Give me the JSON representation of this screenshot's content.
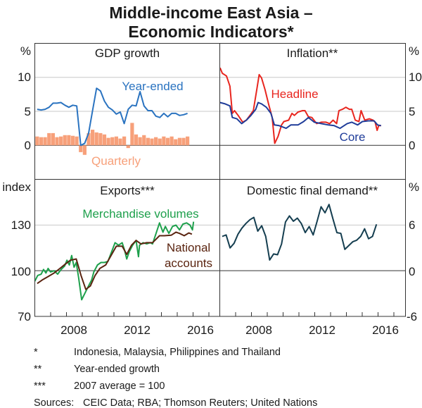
{
  "title_line1": "Middle-income East Asia –",
  "title_line2": "Economic Indicators*",
  "footnotes": [
    {
      "mark": "*",
      "text": "Indonesia, Malaysia, Philippines and Thailand"
    },
    {
      "mark": "**",
      "text": "Year-ended growth"
    },
    {
      "mark": "***",
      "text": "2007 average = 100"
    },
    {
      "mark": "Sources:",
      "text": "CEIC Data; RBA; Thomson Reuters; United Nations"
    }
  ],
  "colors": {
    "year_ended": "#2a73c0",
    "quarterly": "#f7a07a",
    "headline": "#e8261f",
    "core": "#1f3c99",
    "merch": "#1ea04c",
    "national": "#5a2410",
    "dfd": "#153e50",
    "grid": "#c8c8c8"
  },
  "chart_data": [
    {
      "type": "bar+line",
      "title": "GDP growth",
      "ylabel": "%",
      "ylim": [
        -5,
        15
      ],
      "yticks": [
        "10",
        "5",
        "0"
      ],
      "xlim": [
        2006,
        2017.67
      ],
      "xticks": [
        "2008",
        "2012",
        "2016"
      ],
      "x_start_year": 2006.15,
      "x_step_years": 0.25,
      "series": [
        {
          "name": "Year-ended",
          "type": "line",
          "values": [
            5.3,
            5.2,
            5.3,
            5.6,
            6.2,
            6.2,
            6.3,
            5.9,
            5.6,
            5.9,
            5.8,
            0.0,
            0.3,
            1.8,
            5.1,
            8.4,
            8.0,
            6.5,
            5.6,
            5.2,
            4.6,
            4.9,
            3.2,
            5.3,
            5.9,
            5.8,
            7.9,
            5.8,
            5.1,
            5.1,
            4.3,
            4.1,
            4.7,
            4.2,
            4.7,
            4.7,
            4.4,
            4.5,
            4.7
          ]
        },
        {
          "name": "Quarterly",
          "type": "bar",
          "values": [
            1.3,
            1.2,
            1.2,
            1.8,
            1.8,
            1.2,
            1.3,
            1.5,
            1.5,
            1.4,
            1.3,
            -1.0,
            -1.4,
            1.8,
            2.3,
            1.9,
            1.8,
            1.6,
            1.1,
            1.2,
            1.3,
            1.0,
            1.3,
            -0.4,
            3.3,
            1.6,
            1.2,
            1.5,
            1.1,
            1.0,
            1.2,
            1.0,
            1.3,
            1.1,
            1.3,
            0.9,
            1.1,
            1.1,
            1.3
          ]
        }
      ]
    },
    {
      "type": "line",
      "title": "Inflation**",
      "ylabel": "%",
      "ylim": [
        -5,
        15
      ],
      "yticks": [
        "10",
        "5",
        "0"
      ],
      "xlim": [
        2006,
        2017.67
      ],
      "xticks": [
        "2008",
        "2012",
        "2016"
      ],
      "series": [
        {
          "name": "Headline",
          "x": [
            2006.02,
            2006.16,
            2006.42,
            2006.64,
            2006.79,
            2006.93,
            2007.16,
            2007.45,
            2007.68,
            2007.9,
            2008.12,
            2008.34,
            2008.49,
            2008.64,
            2008.86,
            2009.08,
            2009.31,
            2009.47,
            2009.68,
            2009.9,
            2010.05,
            2010.35,
            2010.56,
            2010.71,
            2010.94,
            2011.23,
            2011.38,
            2011.6,
            2011.82,
            2012.12,
            2012.41,
            2012.71,
            2012.94,
            2013.16,
            2013.38,
            2013.53,
            2013.75,
            2013.97,
            2014.19,
            2014.34,
            2014.56,
            2014.79,
            2014.93,
            2015.16,
            2015.45,
            2015.68,
            2015.82,
            2015.94,
            2016.04,
            2016.19
          ],
          "values": [
            11.4,
            10.6,
            10.2,
            8.7,
            4.7,
            5.1,
            4.4,
            3.4,
            3.7,
            4.4,
            5.1,
            8.2,
            10.4,
            9.9,
            8.2,
            6.1,
            4.1,
            0.3,
            1.3,
            3.0,
            3.5,
            3.7,
            4.7,
            4.4,
            4.9,
            5.1,
            5.1,
            4.2,
            4.1,
            3.2,
            3.4,
            3.4,
            3.2,
            3.7,
            3.2,
            5.1,
            5.3,
            5.6,
            5.3,
            5.3,
            3.7,
            3.5,
            5.1,
            3.7,
            3.9,
            3.7,
            3.4,
            2.2,
            2.9,
            2.9
          ]
        },
        {
          "name": "Core",
          "x": [
            2006.02,
            2006.34,
            2006.64,
            2006.79,
            2007.08,
            2007.38,
            2007.68,
            2007.97,
            2008.27,
            2008.42,
            2008.64,
            2008.94,
            2009.23,
            2009.45,
            2009.75,
            2010.19,
            2010.49,
            2010.94,
            2011.3,
            2011.6,
            2011.97,
            2012.41,
            2012.86,
            2013.23,
            2013.6,
            2014.05,
            2014.34,
            2014.71,
            2015.01,
            2015.38,
            2015.75,
            2015.97,
            2016.19
          ],
          "values": [
            6.3,
            6.1,
            5.8,
            4.1,
            3.9,
            3.2,
            3.7,
            4.4,
            5.3,
            6.3,
            6.1,
            5.6,
            4.7,
            3.0,
            2.9,
            2.5,
            3.0,
            3.0,
            3.5,
            4.1,
            3.4,
            3.2,
            3.0,
            2.9,
            2.5,
            3.2,
            3.4,
            3.0,
            3.5,
            3.6,
            3.6,
            3.0,
            2.9
          ]
        }
      ]
    },
    {
      "type": "line",
      "title": "Exports***",
      "ylabel": "index",
      "ylim": [
        70,
        160
      ],
      "yticks": [
        "130",
        "100",
        "70"
      ],
      "xlim": [
        2006,
        2017.67
      ],
      "xticks": [
        "2008",
        "2012",
        "2016"
      ],
      "series": [
        {
          "name": "Merchandise volumes",
          "x": [
            2006.0,
            2006.18,
            2006.4,
            2006.55,
            2006.7,
            2006.84,
            2006.99,
            2007.22,
            2007.44,
            2007.66,
            2007.88,
            2008.03,
            2008.18,
            2008.33,
            2008.48,
            2008.62,
            2008.77,
            2008.96,
            2009.14,
            2009.36,
            2009.59,
            2009.73,
            2009.96,
            2010.18,
            2010.4,
            2010.62,
            2010.85,
            2011.07,
            2011.29,
            2011.52,
            2011.66,
            2011.81,
            2011.96,
            2012.18,
            2012.4,
            2012.55,
            2012.62,
            2012.84,
            2013.07,
            2013.29,
            2013.44,
            2013.66,
            2013.88,
            2014.1,
            2014.25,
            2014.47,
            2014.7,
            2014.92,
            2015.14,
            2015.36,
            2015.59,
            2015.81,
            2015.96,
            2016.03
          ],
          "values": [
            93.1,
            96.9,
            97.7,
            100.8,
            98.5,
            101.5,
            99.2,
            100,
            97.7,
            100.8,
            103,
            106.9,
            103.8,
            110,
            102.3,
            105.4,
            95.4,
            80.9,
            84.7,
            89.3,
            93.9,
            99.2,
            103.8,
            105.4,
            105.4,
            106.1,
            112.3,
            118.4,
            116.8,
            118.4,
            113.8,
            107.7,
            112.3,
            116.8,
            119.9,
            109.2,
            116.8,
            118.4,
            117.6,
            118.4,
            117.6,
            124.5,
            131.4,
            125.3,
            129.1,
            124.5,
            129.1,
            129.9,
            126.8,
            130.6,
            131.4,
            129.9,
            126.8,
            132.2
          ]
        },
        {
          "name": "National accounts",
          "x": [
            2006.15,
            2006.47,
            2006.85,
            2007.22,
            2007.59,
            2007.96,
            2008.25,
            2008.62,
            2008.92,
            2009.22,
            2009.51,
            2009.81,
            2010.11,
            2010.48,
            2010.78,
            2011.15,
            2011.52,
            2011.81,
            2012.11,
            2012.4,
            2012.7,
            2013.07,
            2013.44,
            2013.66,
            2013.88,
            2014.18,
            2014.62,
            2014.92,
            2015.14,
            2015.44,
            2015.73,
            2015.93
          ],
          "values": [
            91.6,
            93.9,
            96.2,
            98.5,
            101.5,
            104.6,
            106.9,
            107.7,
            96.9,
            87.7,
            90,
            96.9,
            101.5,
            103.8,
            109.2,
            116.1,
            116.1,
            110.7,
            116.8,
            119.9,
            117.6,
            118.4,
            118.4,
            120.7,
            123,
            123,
            123.3,
            125.3,
            124.5,
            123,
            124.8,
            124
          ]
        }
      ]
    },
    {
      "type": "line",
      "title": "Domestic final demand**",
      "ylabel": "%",
      "ylim": [
        -6,
        12
      ],
      "yticks": [
        "6",
        "0",
        "-6"
      ],
      "xlim": [
        2006,
        2017.67
      ],
      "xticks": [
        "2008",
        "2012",
        "2016"
      ],
      "x_start_year": 2006.15,
      "x_step_years": 0.25,
      "series": [
        {
          "name": "Domestic final demand",
          "values": [
            4.5,
            4.7,
            3.0,
            3.6,
            4.8,
            5.6,
            6.2,
            6.7,
            7.0,
            5.2,
            5.9,
            4.5,
            1.4,
            2.2,
            2.1,
            3.5,
            6.4,
            7.2,
            6.5,
            6.9,
            6.2,
            5.0,
            5.8,
            4.7,
            6.5,
            8.4,
            7.6,
            8.7,
            6.8,
            5.0,
            4.9,
            2.8,
            3.3,
            3.8,
            4.0,
            4.5,
            5.5,
            4.2,
            4.5,
            6.1
          ]
        }
      ]
    }
  ]
}
